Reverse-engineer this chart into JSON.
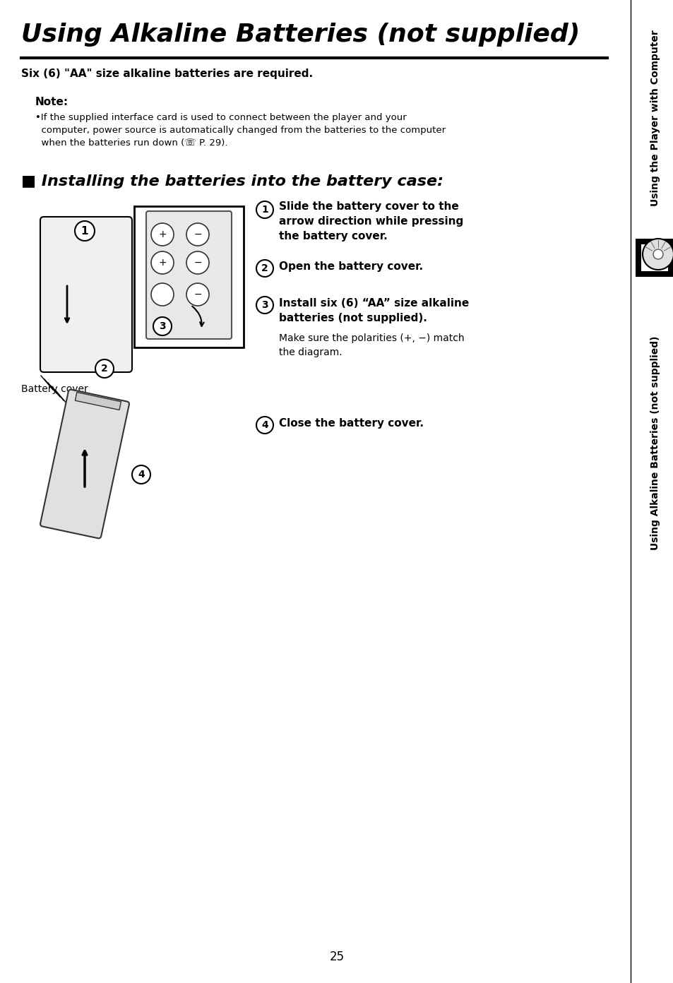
{
  "title": "Using Alkaline Batteries (not supplied)",
  "subtitle": "Six (6) \"AA\" size alkaline batteries are required.",
  "note_label": "Note:",
  "note_text": "•If the supplied interface card is used to connect between the player and your computer, power source is automatically changed from the batteries to the computer when the batteries run down (☏ P. 29).",
  "section_label": "■ Installing the batteries into the battery case:",
  "step1_num": "1",
  "step1_text": "Slide the battery cover to the\narrow direction while pressing\nthe battery cover.",
  "step2_num": "2",
  "step2_text": "Open the battery cover.",
  "step3_num": "3",
  "step3_text": "Install six (6) “AA” size alkaline\nbatteries (not supplied).\nMake sure the polarities (+, −) match\nthe diagram.",
  "step4_num": "4",
  "step4_text": "Close the battery cover.",
  "battery_cover_label": "Battery cover",
  "sidebar_top": "Using the Player with Computer",
  "sidebar_bottom": "Using Alkaline Batteries (not supplied)",
  "page_number": "25",
  "bg_color": "#ffffff",
  "text_color": "#000000",
  "title_color": "#000000",
  "sidebar_bg": "#000000",
  "sidebar_fg": "#ffffff"
}
